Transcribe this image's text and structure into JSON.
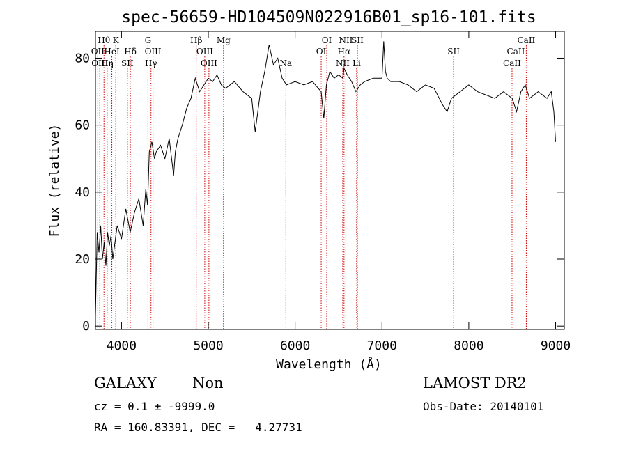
{
  "chart_data": {
    "type": "line",
    "title": "spec-56659-HD104509N022916B01_sp16-101.fits",
    "xlabel": "Wavelength (Å)",
    "ylabel": "Flux (relative)",
    "xlim": [
      3700,
      9100
    ],
    "ylim": [
      -1,
      88
    ],
    "xticks": [
      4000,
      5000,
      6000,
      7000,
      8000,
      9000
    ],
    "yticks": [
      0,
      20,
      40,
      60,
      80
    ],
    "x": [
      3700,
      3720,
      3740,
      3760,
      3780,
      3800,
      3820,
      3840,
      3860,
      3880,
      3900,
      3950,
      4000,
      4050,
      4100,
      4150,
      4200,
      4250,
      4280,
      4300,
      4320,
      4350,
      4380,
      4400,
      4450,
      4500,
      4550,
      4600,
      4620,
      4650,
      4700,
      4750,
      4800,
      4850,
      4900,
      4950,
      5000,
      5050,
      5100,
      5150,
      5200,
      5300,
      5400,
      5500,
      5540,
      5560,
      5600,
      5650,
      5700,
      5750,
      5800,
      5850,
      5900,
      6000,
      6100,
      6200,
      6300,
      6330,
      6360,
      6400,
      6450,
      6500,
      6550,
      6563,
      6600,
      6650,
      6700,
      6750,
      6800,
      6900,
      7000,
      7020,
      7040,
      7060,
      7100,
      7200,
      7300,
      7400,
      7500,
      7600,
      7700,
      7750,
      7800,
      7900,
      8000,
      8100,
      8200,
      8300,
      8400,
      8500,
      8550,
      8600,
      8650,
      8700,
      8800,
      8900,
      8950,
      8980,
      9000
    ],
    "y": [
      3,
      28,
      22,
      30,
      20,
      25,
      18,
      28,
      24,
      27,
      20,
      30,
      26,
      35,
      28,
      34,
      38,
      30,
      41,
      36,
      52,
      55,
      50,
      52,
      54,
      50,
      56,
      45,
      52,
      56,
      60,
      65,
      68,
      74,
      70,
      72,
      74,
      73,
      75,
      72,
      71,
      73,
      70,
      68,
      58,
      62,
      70,
      76,
      84,
      78,
      80,
      74,
      72,
      73,
      72,
      73,
      70,
      62,
      72,
      76,
      74,
      75,
      74,
      77,
      75,
      73,
      70,
      72,
      73,
      74,
      74,
      85,
      76,
      74,
      73,
      73,
      72,
      70,
      72,
      71,
      66,
      64,
      68,
      70,
      72,
      70,
      69,
      68,
      70,
      68,
      64,
      70,
      72,
      68,
      70,
      68,
      70,
      64,
      55
    ],
    "lines": [
      {
        "label": "Hθ",
        "x": 3798,
        "row": 0
      },
      {
        "label": "K",
        "x": 3934,
        "row": 0
      },
      {
        "label": "G",
        "x": 4305,
        "row": 0
      },
      {
        "label": "Hβ",
        "x": 4861,
        "row": 0
      },
      {
        "label": "Mg",
        "x": 5175,
        "row": 0
      },
      {
        "label": "OI",
        "x": 6364,
        "row": 0
      },
      {
        "label": "NII",
        "x": 6584,
        "row": 0
      },
      {
        "label": "SII",
        "x": 6717,
        "row": 0
      },
      {
        "label": "CaII",
        "x": 8662,
        "row": 0
      },
      {
        "label": "OII",
        "x": 3727,
        "row": 1
      },
      {
        "label": "HeI",
        "x": 3889,
        "row": 1
      },
      {
        "label": "Hδ",
        "x": 4102,
        "row": 1
      },
      {
        "label": "OIII",
        "x": 4363,
        "row": 1
      },
      {
        "label": "OIII",
        "x": 4959,
        "row": 1
      },
      {
        "label": "OI",
        "x": 6300,
        "row": 1
      },
      {
        "label": "Hα",
        "x": 6563,
        "row": 1
      },
      {
        "label": "SII",
        "x": 7825,
        "row": 1
      },
      {
        "label": "CaII",
        "x": 8542,
        "row": 1
      },
      {
        "label": "OIII",
        "x": 3750,
        "row": 2
      },
      {
        "label": "Hη",
        "x": 3835,
        "row": 2
      },
      {
        "label": "SII",
        "x": 4068,
        "row": 2
      },
      {
        "label": "Hγ",
        "x": 4340,
        "row": 2
      },
      {
        "label": "OIII",
        "x": 5007,
        "row": 2
      },
      {
        "label": "Na",
        "x": 5893,
        "row": 2
      },
      {
        "label": "NII",
        "x": 6548,
        "row": 2
      },
      {
        "label": "Li",
        "x": 6708,
        "row": 2
      },
      {
        "label": "CaII",
        "x": 8498,
        "row": 2
      }
    ]
  },
  "info": {
    "class": "GALAXY",
    "subclass": "Non",
    "survey": "LAMOST DR2",
    "cz": "cz = 0.1 ± -9999.0",
    "obs_date": "Obs-Date: 20140101",
    "radec": "RA = 160.83391, DEC =   4.27731"
  },
  "colors": {
    "axis": "#000000",
    "spectrum": "#000000",
    "line_markers": "#cc0000"
  }
}
